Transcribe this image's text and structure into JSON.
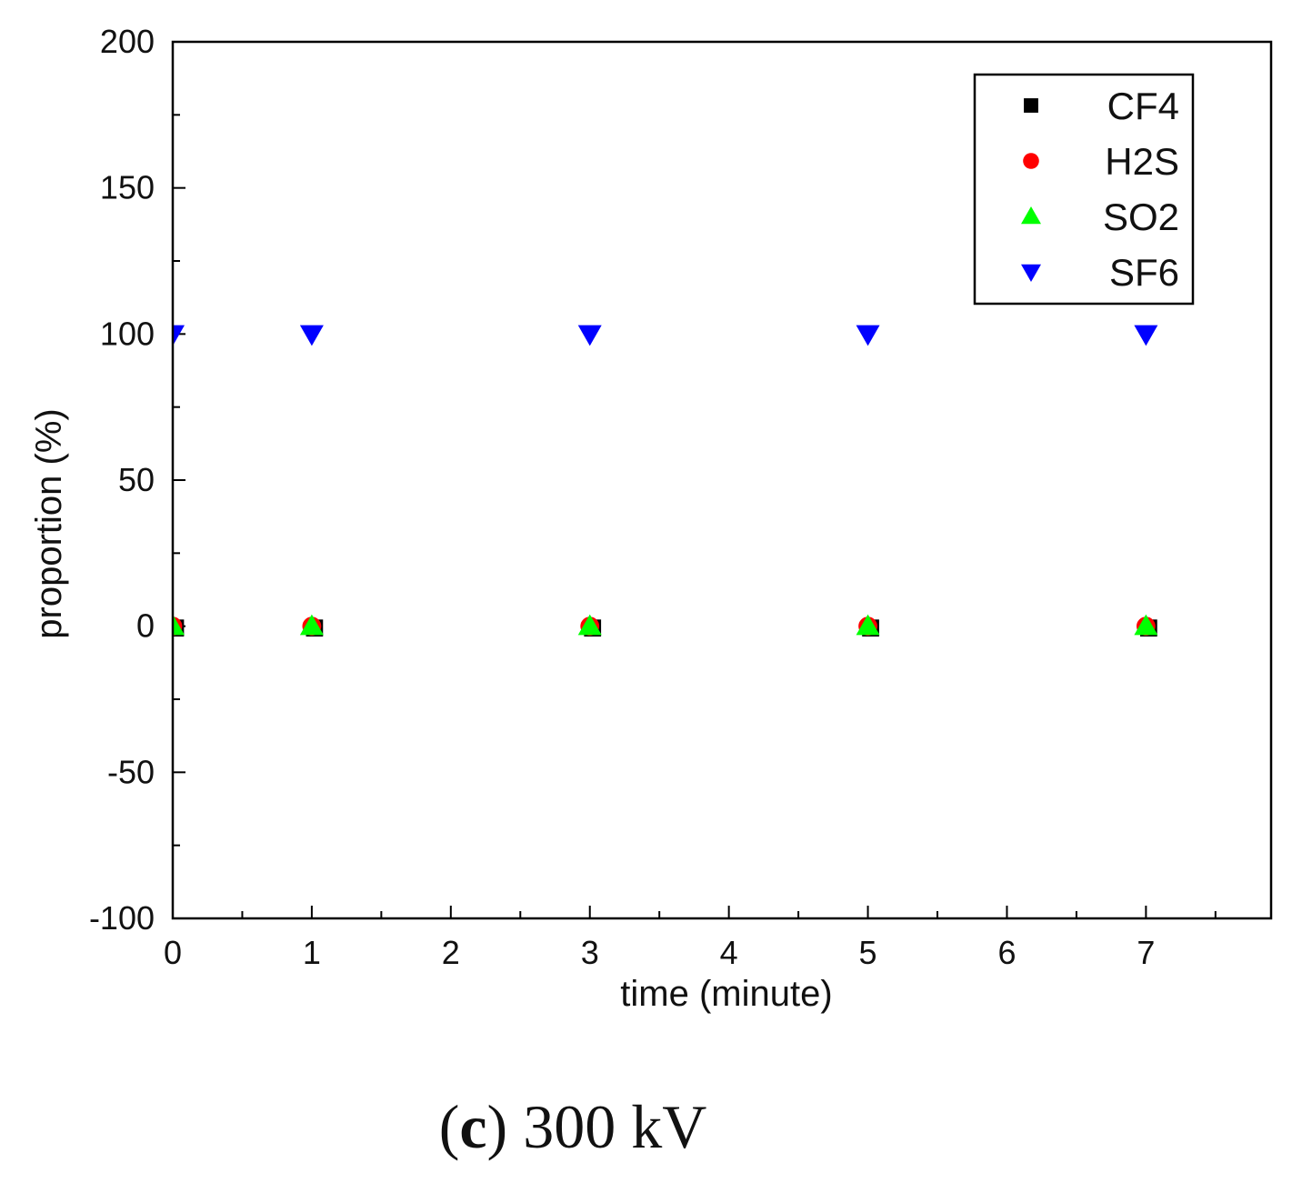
{
  "chart_data": {
    "type": "scatter",
    "title": "",
    "xlabel": "time (minute)",
    "ylabel": "proportion (%)",
    "xlim": [
      0,
      7.9
    ],
    "ylim": [
      -100,
      200
    ],
    "x_ticks": [
      0,
      1,
      2,
      3,
      4,
      5,
      6,
      7
    ],
    "y_ticks": [
      -100,
      -50,
      0,
      50,
      100,
      150,
      200
    ],
    "legend_position": "top-right",
    "series": [
      {
        "name": "CF4",
        "marker": "square",
        "color": "#000000",
        "x": [
          0,
          1,
          3,
          5,
          7
        ],
        "y": [
          0,
          0,
          0,
          0,
          0
        ]
      },
      {
        "name": "H2S",
        "marker": "circle",
        "color": "#ff0000",
        "x": [
          0,
          1,
          3,
          5,
          7
        ],
        "y": [
          0,
          0,
          0,
          0,
          0
        ]
      },
      {
        "name": "SO2",
        "marker": "triangle-up",
        "color": "#00ff00",
        "x": [
          0,
          1,
          3,
          5,
          7
        ],
        "y": [
          0,
          0,
          0,
          0,
          0
        ]
      },
      {
        "name": "SF6",
        "marker": "triangle-down",
        "color": "#0000ff",
        "x": [
          0,
          1,
          3,
          5,
          7
        ],
        "y": [
          100,
          100,
          100,
          100,
          100
        ]
      }
    ]
  },
  "caption": {
    "letter": "c",
    "open_paren": "(",
    "close_paren": ")",
    "text": "300 kV"
  }
}
